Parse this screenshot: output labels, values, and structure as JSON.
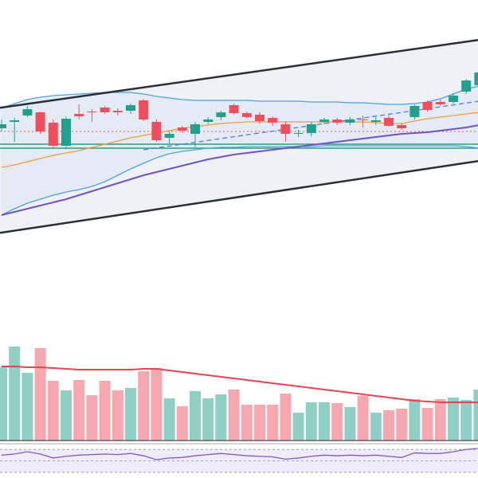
{
  "chart_data": {
    "type": "candlestick",
    "ylim": [
      0,
      300
    ],
    "up_color": "#22a08c",
    "down_color": "#ef4f5d",
    "open": [
      139,
      147,
      155,
      159,
      146,
      117,
      157,
      160,
      165,
      161,
      161,
      174,
      147,
      127,
      140,
      132,
      147,
      153,
      168,
      158,
      156,
      152,
      144,
      132,
      133,
      147,
      150,
      146,
      150,
      147,
      152,
      143,
      153,
      172,
      172,
      172,
      185,
      193
    ],
    "high": [
      150,
      152,
      167,
      160,
      150,
      154,
      169,
      163,
      167,
      164,
      170,
      176,
      150,
      135,
      142,
      147,
      153,
      161,
      170,
      160,
      159,
      154,
      147,
      137,
      147,
      152,
      152,
      153,
      155,
      153,
      155,
      145,
      169,
      174,
      175,
      183,
      201,
      211
    ],
    "low": [
      135,
      122,
      153,
      132,
      114,
      113,
      150,
      147,
      157,
      155,
      157,
      148,
      122,
      120,
      133,
      115,
      144,
      149,
      156,
      151,
      145,
      142,
      122,
      128,
      129,
      144,
      143,
      143,
      140,
      143,
      141,
      137,
      150,
      160,
      167,
      170,
      182,
      190
    ],
    "close": [
      144,
      149,
      163,
      135,
      117,
      151,
      154,
      159,
      159,
      159,
      168,
      150,
      124,
      132,
      136,
      144,
      150,
      159,
      158,
      153,
      148,
      146,
      132,
      133,
      144,
      150,
      146,
      150,
      149,
      149,
      142,
      139,
      167,
      162,
      169,
      180,
      199,
      209
    ],
    "overlays": [
      {
        "color": "#4aa3df",
        "values": [
          164,
          170,
          175,
          178,
          180,
          181,
          182,
          183,
          184,
          184,
          184,
          182,
          179,
          177,
          175,
          174,
          174,
          174,
          174,
          174,
          173,
          173,
          173,
          173,
          172,
          172,
          172,
          171,
          171,
          170,
          169,
          169,
          170,
          172,
          176,
          182,
          188,
          192
        ]
      },
      {
        "color": "#4aa3df",
        "values": [
          30,
          38,
          45,
          50,
          55,
          59,
          62,
          66,
          72,
          80,
          88,
          95,
          102,
          107,
          110,
          112,
          114,
          115,
          115,
          116,
          116,
          116,
          116,
          116,
          116,
          117,
          117,
          117,
          117,
          117,
          117,
          117,
          117,
          117,
          117,
          117,
          116,
          114
        ]
      },
      {
        "color": "#f39a3a",
        "values": [
          90,
          93,
          97,
          101,
          105,
          108,
          111,
          115,
          119,
          123,
          127,
          130,
          133,
          136,
          139,
          141,
          143,
          145,
          146,
          147,
          147,
          147,
          147,
          147,
          147,
          147,
          147,
          147,
          147,
          146,
          145,
          145,
          148,
          151,
          153,
          155,
          157,
          159
        ]
      },
      {
        "color": "#7352c4",
        "values": [
          30,
          34,
          38,
          42,
          46,
          50,
          55,
          60,
          65,
          70,
          75,
          80,
          84,
          88,
          92,
          96,
          100,
          103,
          106,
          108,
          110,
          112,
          114,
          116,
          118,
          120,
          122,
          124,
          126,
          128,
          130,
          132,
          133,
          134,
          136,
          138,
          140,
          143
        ]
      }
    ],
    "trend_lines": [
      {
        "color": "#2b2e38",
        "dashed": false,
        "x": [
          0,
          37
        ],
        "values": [
          165,
          250
        ]
      },
      {
        "color": "#2b2e38",
        "dashed": false,
        "x": [
          0,
          37
        ],
        "values": [
          8,
          98
        ]
      },
      {
        "color": "#4a7fe0",
        "dashed": true,
        "x": [
          11,
          37
        ],
        "values": [
          112,
          173
        ]
      }
    ],
    "levels": [
      {
        "value": 119,
        "color": "#2e9e7e",
        "dashed": false
      },
      {
        "value": 114,
        "color": "#2e9e7e",
        "dashed": false
      },
      {
        "value": 135,
        "color": "#e05a5a",
        "dashed": true
      }
    ],
    "volume": {
      "ylim": [
        0,
        153
      ],
      "values": [
        92,
        118,
        85,
        116,
        75,
        63,
        76,
        57,
        75,
        63,
        66,
        87,
        91,
        53,
        43,
        62,
        53,
        58,
        64,
        45,
        45,
        45,
        59,
        35,
        48,
        48,
        47,
        42,
        56,
        35,
        38,
        40,
        52,
        41,
        52,
        54,
        51,
        64
      ],
      "ma_color": "#e8434f",
      "ma": [
        93,
        93,
        92,
        92,
        91,
        90,
        89,
        89,
        89,
        89,
        89,
        90,
        90,
        88,
        86,
        84,
        82,
        80,
        78,
        76,
        74,
        72,
        70,
        68,
        66,
        64,
        62,
        60,
        58,
        56,
        54,
        52,
        50,
        49,
        48,
        48,
        48,
        48
      ]
    },
    "rsi": {
      "ylim": [
        20,
        80
      ],
      "color": "#7e5bbf",
      "levels": [
        70,
        50,
        30
      ],
      "values": [
        60,
        62,
        66,
        62,
        55,
        58,
        60,
        61,
        62,
        61,
        63,
        59,
        52,
        55,
        56,
        59,
        61,
        63,
        61,
        59,
        58,
        57,
        53,
        55,
        58,
        60,
        59,
        60,
        59,
        60,
        58,
        56,
        64,
        63,
        63,
        66,
        70,
        72
      ]
    }
  }
}
